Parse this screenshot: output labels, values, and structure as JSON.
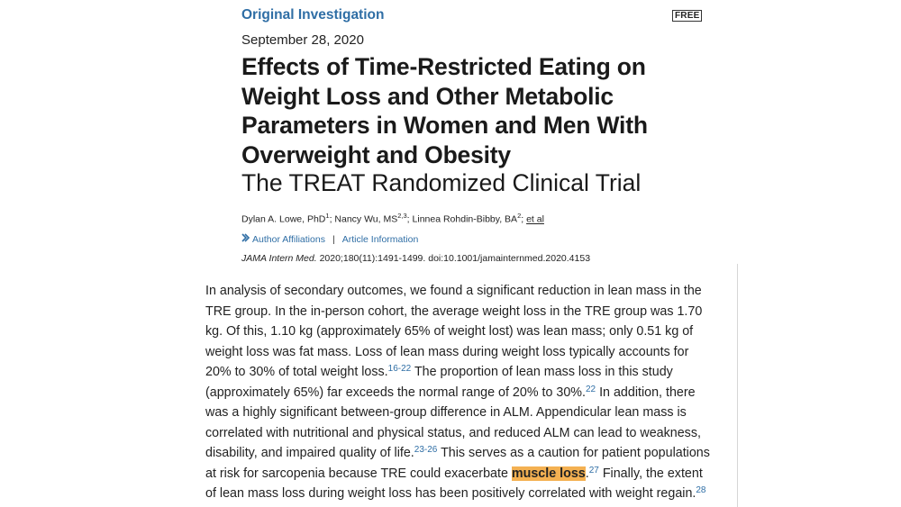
{
  "header": {
    "category": "Original Investigation",
    "free_badge": "FREE",
    "date": "September 28, 2020",
    "title": "Effects of Time-Restricted Eating on Weight Loss and Other Metabolic Parameters in Women and Men With Overweight and Obesity",
    "subtitle": "The TREAT Randomized Clinical Trial"
  },
  "authors": {
    "a1_name": "Dylan A. Lowe, PhD",
    "a1_sup": "1",
    "sep1": "; ",
    "a2_name": "Nancy Wu, MS",
    "a2_sup": "2,3",
    "sep2": "; ",
    "a3_name": "Linnea Rohdin-Bibby, BA",
    "a3_sup": "2",
    "sep3": "; ",
    "et_al": "et al"
  },
  "links": {
    "author_affiliations": "Author Affiliations",
    "separator": "|",
    "article_information": "Article Information"
  },
  "citation": {
    "journal": "JAMA Intern Med.",
    "details": " 2020;180(11):1491-1499. doi:10.1001/jamainternmed.2020.4153"
  },
  "body": {
    "t1": "In analysis of secondary outcomes, we found a significant reduction in lean mass in the TRE group. In the in-person cohort, the average weight loss in the TRE group was 1.70 kg. Of this, 1.10 kg (approximately 65% of weight lost) was lean mass; only 0.51 kg of weight loss was fat mass. Loss of lean mass during weight loss typically accounts for 20% to 30% of total weight loss.",
    "r1": "16-22",
    "t2": " The proportion of lean mass loss in this study (approximately 65%) far exceeds the normal range of 20% to 30%.",
    "r2": "22",
    "t3": " In addition, there was a highly significant between-group dif­ference in ALM. Appendicular lean mass is correlated with nutritional and physical status, and reduced ALM can lead to weakness, disability, and impaired quality of life.",
    "r3": "23-26",
    "t4": " This serves as a caution for patient populations at risk for sarcopenia because TRE could exacerbate ",
    "highlight": "muscle loss",
    "t5": ".",
    "r4": "27",
    "t6": " Finally, the extent of lean mass loss during weight loss has been positively correlated with weight regain.",
    "r5": "28"
  }
}
